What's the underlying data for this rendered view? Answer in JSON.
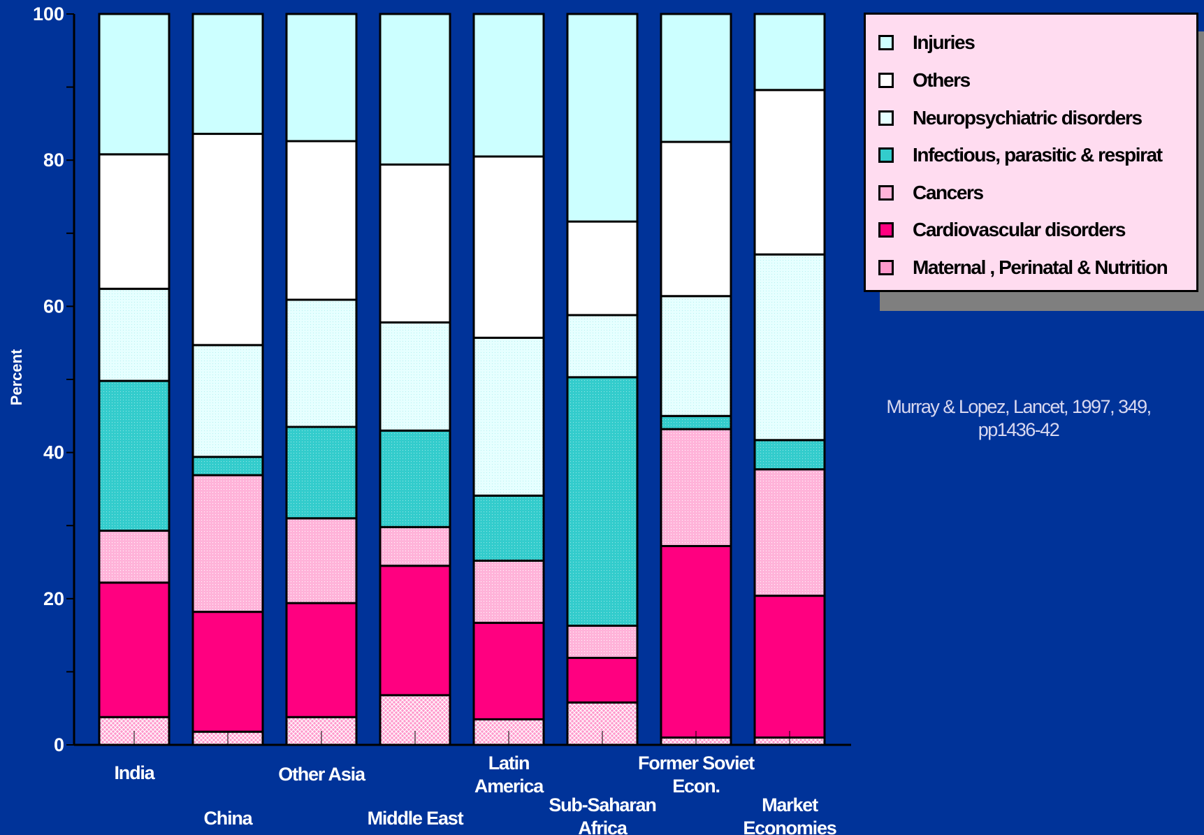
{
  "chart_data": {
    "type": "bar",
    "stacked": true,
    "ylabel": "Percent",
    "ylim": [
      0,
      100
    ],
    "yticks": [
      0,
      20,
      40,
      60,
      80,
      100
    ],
    "categories": [
      "India",
      "China",
      "Other Asia",
      "Middle East",
      "Latin America",
      "Sub-Saharan Africa",
      "Former Soviet Econ.",
      "Market Economies"
    ],
    "category_labels": [
      [
        "India"
      ],
      [
        "China"
      ],
      [
        "Other Asia"
      ],
      [
        "Middle East"
      ],
      [
        "Latin",
        "America"
      ],
      [
        "Sub-Saharan",
        "Africa"
      ],
      [
        "Former Soviet",
        "Econ."
      ],
      [
        "Market",
        "Economies"
      ]
    ],
    "series": [
      {
        "name": "Maternal , Perinatal & Nutrition",
        "color": "#ff99cc",
        "pattern": "crosshatch",
        "values": [
          3.8,
          1.8,
          3.8,
          6.8,
          3.5,
          5.8,
          1.0,
          1.0
        ]
      },
      {
        "name": "Cardiovascular disorders",
        "color": "#ff0080",
        "pattern": "solid",
        "values": [
          18.4,
          16.4,
          15.6,
          17.7,
          13.2,
          6.1,
          26.2,
          19.4
        ]
      },
      {
        "name": "Cancers",
        "color": "#ffb3d9",
        "pattern": "dots",
        "values": [
          7.1,
          18.7,
          11.6,
          5.3,
          8.5,
          4.4,
          16.0,
          17.3
        ]
      },
      {
        "name": "Infectious, parasitic & respirat",
        "color": "#33cccc",
        "pattern": "dots",
        "values": [
          20.5,
          2.5,
          12.5,
          13.2,
          8.9,
          34.0,
          1.8,
          4.0
        ]
      },
      {
        "name": "Neuropsychiatric disorders",
        "color": "#e6ffff",
        "pattern": "dots",
        "values": [
          12.6,
          15.3,
          17.4,
          14.8,
          21.6,
          8.5,
          16.4,
          25.4
        ]
      },
      {
        "name": "Others",
        "color": "#ffffff",
        "pattern": "solid",
        "values": [
          18.4,
          28.9,
          21.7,
          21.6,
          24.8,
          12.8,
          21.1,
          22.5
        ]
      },
      {
        "name": "Injuries",
        "color": "#ccffff",
        "pattern": "solid",
        "values": [
          19.2,
          16.4,
          17.4,
          20.6,
          19.5,
          28.4,
          17.5,
          10.4
        ]
      }
    ],
    "legend_position": "top-right",
    "grid": false
  },
  "legend": {
    "items": [
      {
        "label": "Injuries",
        "color": "#ccffff"
      },
      {
        "label": "Others",
        "color": "#ffffff"
      },
      {
        "label": "Neuropsychiatric disorders",
        "color": "#e6ffff"
      },
      {
        "label": "Infectious, parasitic & respirat",
        "color": "#33cccc"
      },
      {
        "label": "Cancers",
        "color": "#ffb3d9"
      },
      {
        "label": "Cardiovascular disorders",
        "color": "#ff0080"
      },
      {
        "label": "Maternal , Perinatal & Nutrition",
        "color": "#ff99cc"
      }
    ]
  },
  "citation": {
    "line1": "Murray & Lopez, Lancet, 1997, 349,",
    "line2": "pp1436-42"
  },
  "colors": {
    "background": "#003399",
    "axis": "#000000",
    "tick_label": "#ffffff"
  }
}
